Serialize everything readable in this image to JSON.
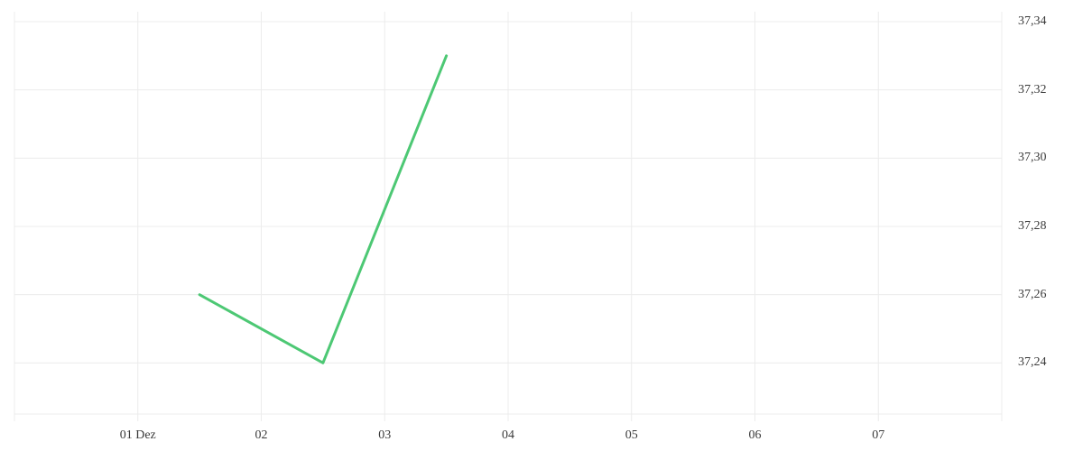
{
  "chart": {
    "background": "#ffffff",
    "gridline_color": "#ececec",
    "axis_text_color": "#3b3b3b"
  },
  "chart_data": {
    "type": "line",
    "title": "",
    "legend": false,
    "grid": true,
    "x_axis": {
      "unit": "day",
      "tick_labels": [
        "01 Dez",
        "02",
        "03",
        "04",
        "05",
        "06",
        "07"
      ],
      "tick_day_positions": [
        1,
        2,
        3,
        4,
        5,
        6,
        7
      ],
      "gridline_day_positions": [
        0,
        1,
        2,
        3,
        4,
        5,
        6,
        7,
        8
      ]
    },
    "y_axis": {
      "side": "right",
      "tick_labels": [
        "37,34",
        "37,32",
        "37,30",
        "37,28",
        "37,26",
        "37,24"
      ],
      "tick_values": [
        37.34,
        37.32,
        37.3,
        37.28,
        37.26,
        37.24
      ],
      "tick_step": 0.02,
      "range": [
        37.225,
        37.343
      ]
    },
    "series": [
      {
        "name": "",
        "color": "#4dc874",
        "line_width": 3,
        "points": [
          {
            "x_label": "01 Dez",
            "day": 1.5,
            "value": 37.26
          },
          {
            "x_label": "02",
            "day": 2.5,
            "value": 37.24
          },
          {
            "x_label": "03",
            "day": 3.5,
            "value": 37.33
          }
        ]
      }
    ]
  }
}
